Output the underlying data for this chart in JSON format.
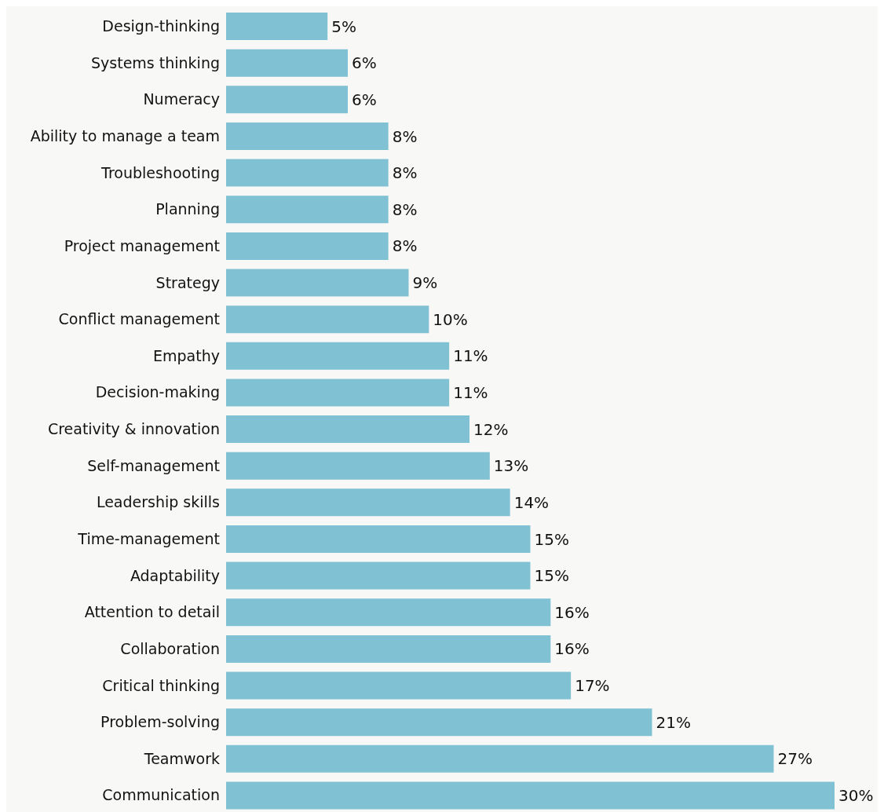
{
  "chart_data": {
    "type": "bar",
    "orientation": "horizontal",
    "categories": [
      "Design-thinking",
      "Systems thinking",
      "Numeracy",
      "Ability to manage a team",
      "Troubleshooting",
      "Planning",
      "Project management",
      "Strategy",
      "Conflict management",
      "Empathy",
      "Decision-making",
      "Creativity & innovation",
      "Self-management",
      "Leadership skills",
      "Time-management",
      "Adaptability",
      "Attention to detail",
      "Collaboration",
      "Critical thinking",
      "Problem-solving",
      "Teamwork",
      "Communication"
    ],
    "values": [
      5,
      6,
      6,
      8,
      8,
      8,
      8,
      9,
      10,
      11,
      11,
      12,
      13,
      14,
      15,
      15,
      16,
      16,
      17,
      21,
      27,
      30
    ],
    "value_labels": [
      "5%",
      "6%",
      "6%",
      "8%",
      "8%",
      "8%",
      "8%",
      "9%",
      "10%",
      "11%",
      "11%",
      "12%",
      "13%",
      "14%",
      "15%",
      "15%",
      "16%",
      "16%",
      "17%",
      "21%",
      "27%",
      "30%"
    ],
    "color": "#80c1d4",
    "grid": false,
    "legend": false
  }
}
